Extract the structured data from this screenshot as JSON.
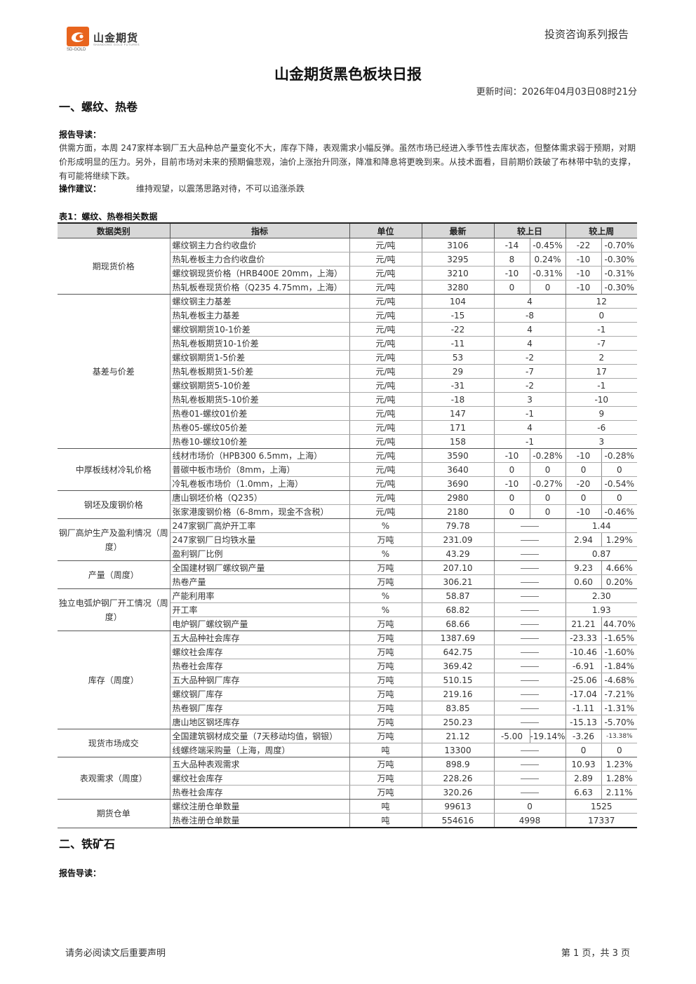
{
  "header": {
    "logo_cn": "山金期货",
    "logo_en_left": "SD-GOLD",
    "logo_en_right": "SHANDONG GOLD FUTURES",
    "report_series": "投资咨询系列报告",
    "logo_color": "#e8641e"
  },
  "title": "山金期货黑色板块日报",
  "update_time": "更新时间：2026年04月03日08时21分",
  "section1": {
    "title": "一、螺纹、热卷",
    "intro_label": "报告导读：",
    "intro_text": "供需方面，本周 247家样本钢厂五大品种总产量变化不大，库存下降，表观需求小幅反弹。虽然市场已经进入季节性去库状态，但整体需求弱于预期，对期价形成明显的压力。另外，目前市场对未来的预期偏悲观，油价上涨抬升同涨，降准和降息将更晚到来。从技术面看，目前期价跌破了布林带中轨的支撑，有可能将继续下跌。",
    "advice_label": "操作建议：",
    "advice_text": "维持观望，以震荡思路对待，不可以追涨杀跌"
  },
  "table": {
    "caption": "表1：螺纹、热卷相关数据",
    "headers": [
      "数据类别",
      "指标",
      "单位",
      "最新",
      "较上日",
      "较上周"
    ],
    "dash": "——",
    "groups": [
      {
        "category": "期现货价格",
        "rows": [
          {
            "ind": "螺纹钢主力合约收盘价",
            "unit": "元/吨",
            "latest": "3106",
            "d1": "-14",
            "d1c": "neg",
            "d2": "-0.45%",
            "d2c": "neg",
            "w1": "-22",
            "w1c": "neg",
            "w2": "-0.70%",
            "w2c": "neg"
          },
          {
            "ind": "热轧卷板主力合约收盘价",
            "unit": "元/吨",
            "latest": "3295",
            "d1": "8",
            "d1c": "pos",
            "d2": "0.24%",
            "d2c": "pos",
            "w1": "-10",
            "w1c": "neg",
            "w2": "-0.30%",
            "w2c": "neg"
          },
          {
            "ind": "螺纹钢现货价格（HRB400E 20mm，上海）",
            "unit": "元/吨",
            "latest": "3210",
            "d1": "-10",
            "d1c": "neg",
            "d2": "-0.31%",
            "d2c": "neg",
            "w1": "-10",
            "w1c": "neg",
            "w2": "-0.31%",
            "w2c": "neg"
          },
          {
            "ind": "热轧板卷现货价格（Q235 4.75mm，上海）",
            "unit": "元/吨",
            "latest": "3280",
            "d1": "0",
            "d1c": "neu",
            "d2": "0",
            "d2c": "neu",
            "w1": "-10",
            "w1c": "neg",
            "w2": "-0.30%",
            "w2c": "neg"
          }
        ]
      },
      {
        "category": "基差与价差",
        "rows": [
          {
            "ind": "螺纹钢主力基差",
            "unit": "元/吨",
            "latest": "104",
            "d": "4",
            "dc": "pos",
            "w": "12",
            "wc": "pos"
          },
          {
            "ind": "热轧卷板主力基差",
            "unit": "元/吨",
            "latest": "-15",
            "d": "-8",
            "dc": "neg",
            "w": "0",
            "wc": "neu"
          },
          {
            "ind": "螺纹钢期货10-1价差",
            "unit": "元/吨",
            "latest": "-22",
            "d": "4",
            "dc": "pos",
            "w": "-1",
            "wc": "neg"
          },
          {
            "ind": "热轧卷板期货10-1价差",
            "unit": "元/吨",
            "latest": "-11",
            "d": "4",
            "dc": "pos",
            "w": "-7",
            "wc": "neg"
          },
          {
            "ind": "螺纹钢期货1-5价差",
            "unit": "元/吨",
            "latest": "53",
            "d": "-2",
            "dc": "neg",
            "w": "2",
            "wc": "pos"
          },
          {
            "ind": "热轧卷板期货1-5价差",
            "unit": "元/吨",
            "latest": "29",
            "d": "-7",
            "dc": "neg",
            "w": "17",
            "wc": "pos"
          },
          {
            "ind": "螺纹钢期货5-10价差",
            "unit": "元/吨",
            "latest": "-31",
            "d": "-2",
            "dc": "neg",
            "w": "-1",
            "wc": "neg"
          },
          {
            "ind": "热轧卷板期货5-10价差",
            "unit": "元/吨",
            "latest": "-18",
            "d": "3",
            "dc": "pos",
            "w": "-10",
            "wc": "neg"
          },
          {
            "ind": "热卷01-螺纹01价差",
            "unit": "元/吨",
            "latest": "147",
            "d": "-1",
            "dc": "neg",
            "w": "9",
            "wc": "pos"
          },
          {
            "ind": "热卷05-螺纹05价差",
            "unit": "元/吨",
            "latest": "171",
            "d": "4",
            "dc": "pos",
            "w": "-6",
            "wc": "neg"
          },
          {
            "ind": "热卷10-螺纹10价差",
            "unit": "元/吨",
            "latest": "158",
            "d": "-1",
            "dc": "neg",
            "w": "3",
            "wc": "pos"
          }
        ]
      },
      {
        "category": "中厚板线材冷轧价格",
        "rows": [
          {
            "ind": "线材市场价（HPB300 6.5mm，上海）",
            "unit": "元/吨",
            "latest": "3590",
            "d1": "-10",
            "d1c": "neg",
            "d2": "-0.28%",
            "d2c": "neg",
            "w1": "-10",
            "w1c": "neg",
            "w2": "-0.28%",
            "w2c": "neg"
          },
          {
            "ind": "普碳中板市场价（8mm，上海）",
            "unit": "元/吨",
            "latest": "3640",
            "d1": "0",
            "d1c": "neu",
            "d2": "0",
            "d2c": "neu",
            "w1": "0",
            "w1c": "neu",
            "w2": "0",
            "w2c": "neu"
          },
          {
            "ind": "冷轧卷板市场价（1.0mm，上海）",
            "unit": "元/吨",
            "latest": "3690",
            "d1": "-10",
            "d1c": "neg",
            "d2": "-0.27%",
            "d2c": "neg",
            "w1": "-20",
            "w1c": "neg",
            "w2": "-0.54%",
            "w2c": "neg"
          }
        ]
      },
      {
        "category": "钢坯及废钢价格",
        "rows": [
          {
            "ind": "唐山钢坯价格（Q235）",
            "unit": "元/吨",
            "latest": "2980",
            "d1": "0",
            "d1c": "neu",
            "d2": "0",
            "d2c": "neu",
            "w1": "0",
            "w1c": "neu",
            "w2": "0",
            "w2c": "neu"
          },
          {
            "ind": "张家港废钢价格（6-8mm，现金不含税）",
            "unit": "元/吨",
            "latest": "2180",
            "d1": "0",
            "d1c": "neu",
            "d2": "0",
            "d2c": "neu",
            "w1": "-10",
            "w1c": "neg",
            "w2": "-0.46%",
            "w2c": "neg"
          }
        ]
      },
      {
        "category": "钢厂高炉生产及盈利情况（周度）",
        "rows": [
          {
            "ind": "247家钢厂高炉开工率",
            "unit": "%",
            "latest": "79.78",
            "w": "1.44",
            "wc": "pos"
          },
          {
            "ind": "247家钢厂日均铁水量",
            "unit": "万吨",
            "latest": "231.09",
            "w1": "2.94",
            "w1c": "pos",
            "w2": "1.29%",
            "w2c": "pos"
          },
          {
            "ind": "盈利钢厂比例",
            "unit": "%",
            "latest": "43.29",
            "w": "0.87",
            "wc": "pos"
          }
        ]
      },
      {
        "category": "产量（周度）",
        "rows": [
          {
            "ind": "全国建材钢厂螺纹钢产量",
            "unit": "万吨",
            "latest": "207.10",
            "w1": "9.23",
            "w1c": "pos",
            "w2": "4.66%",
            "w2c": "pos"
          },
          {
            "ind": "热卷产量",
            "unit": "万吨",
            "latest": "306.21",
            "w1": "0.60",
            "w1c": "pos",
            "w2": "0.20%",
            "w2c": "pos"
          }
        ]
      },
      {
        "category": "独立电弧炉钢厂开工情况（周度）",
        "rows": [
          {
            "ind": "产能利用率",
            "unit": "%",
            "latest": "58.87",
            "w": "2.30",
            "wc": "pos"
          },
          {
            "ind": "开工率",
            "unit": "%",
            "latest": "68.82",
            "w": "1.93",
            "wc": "pos"
          },
          {
            "ind": "电炉钢厂螺纹钢产量",
            "unit": "万吨",
            "latest": "68.66",
            "w1": "21.21",
            "w1c": "pos",
            "w2": "44.70%",
            "w2c": "pos"
          }
        ]
      },
      {
        "category": "库存（周度）",
        "rows": [
          {
            "ind": "五大品种社会库存",
            "unit": "万吨",
            "latest": "1387.69",
            "w1": "-23.33",
            "w1c": "neg",
            "w2": "-1.65%",
            "w2c": "neg"
          },
          {
            "ind": "螺纹社会库存",
            "unit": "万吨",
            "latest": "642.75",
            "w1": "-10.46",
            "w1c": "neg",
            "w2": "-1.60%",
            "w2c": "neg"
          },
          {
            "ind": "热卷社会库存",
            "unit": "万吨",
            "latest": "369.42",
            "w1": "-6.91",
            "w1c": "neg",
            "w2": "-1.84%",
            "w2c": "neg"
          },
          {
            "ind": "五大品种钢厂库存",
            "unit": "万吨",
            "latest": "510.15",
            "w1": "-25.06",
            "w1c": "neg",
            "w2": "-4.68%",
            "w2c": "neg"
          },
          {
            "ind": "螺纹钢厂库存",
            "unit": "万吨",
            "latest": "219.16",
            "w1": "-17.04",
            "w1c": "neg",
            "w2": "-7.21%",
            "w2c": "neg"
          },
          {
            "ind": "热卷钢厂库存",
            "unit": "万吨",
            "latest": "83.85",
            "w1": "-1.11",
            "w1c": "neg",
            "w2": "-1.31%",
            "w2c": "neg"
          },
          {
            "ind": "唐山地区钢坯库存",
            "unit": "万吨",
            "latest": "250.23",
            "w1": "-15.13",
            "w1c": "neg",
            "w2": "-5.70%",
            "w2c": "neg"
          }
        ]
      },
      {
        "category": "现货市场成交",
        "rows": [
          {
            "ind": "全国建筑钢材成交量（7天移动均值，钢银）",
            "unit": "万吨",
            "latest": "21.12",
            "d1": "-5.00",
            "d1c": "neg",
            "d2": "-19.14%",
            "d2c": "neg",
            "w1": "-3.26",
            "w1c": "neg",
            "w2": "-13.38%",
            "w2c": "neg",
            "w2tiny": true
          },
          {
            "ind": "线螺终端采购量（上海，周度）",
            "unit": "吨",
            "latest": "13300",
            "dash": true,
            "w1": "0",
            "w1c": "neu",
            "w2": "0",
            "w2c": "neu"
          }
        ]
      },
      {
        "category": "表观需求（周度）",
        "rows": [
          {
            "ind": "五大品种表观需求",
            "unit": "万吨",
            "latest": "898.9",
            "w1": "10.93",
            "w1c": "pos",
            "w2": "1.23%",
            "w2c": "pos"
          },
          {
            "ind": "螺纹社会库存",
            "unit": "万吨",
            "latest": "228.26",
            "w1": "2.89",
            "w1c": "pos",
            "w2": "1.28%",
            "w2c": "pos"
          },
          {
            "ind": "热卷社会库存",
            "unit": "万吨",
            "latest": "320.26",
            "w1": "6.63",
            "w1c": "pos",
            "w2": "2.11%",
            "w2c": "pos"
          }
        ]
      },
      {
        "category": "期货仓单",
        "rows": [
          {
            "ind": "螺纹注册仓单数量",
            "unit": "吨",
            "latest": "99613",
            "d": "0",
            "dc": "neu",
            "w": "1525",
            "wc": "pos"
          },
          {
            "ind": "热卷注册仓单数量",
            "unit": "吨",
            "latest": "554616",
            "d": "4998",
            "dc": "pos",
            "w": "17337",
            "wc": "pos"
          }
        ]
      }
    ]
  },
  "section2": {
    "title": "二、铁矿石",
    "intro_label": "报告导读："
  },
  "footer": {
    "disclaimer": "请务必阅读文后重要声明",
    "page": "第 1 页，共 3 页"
  }
}
